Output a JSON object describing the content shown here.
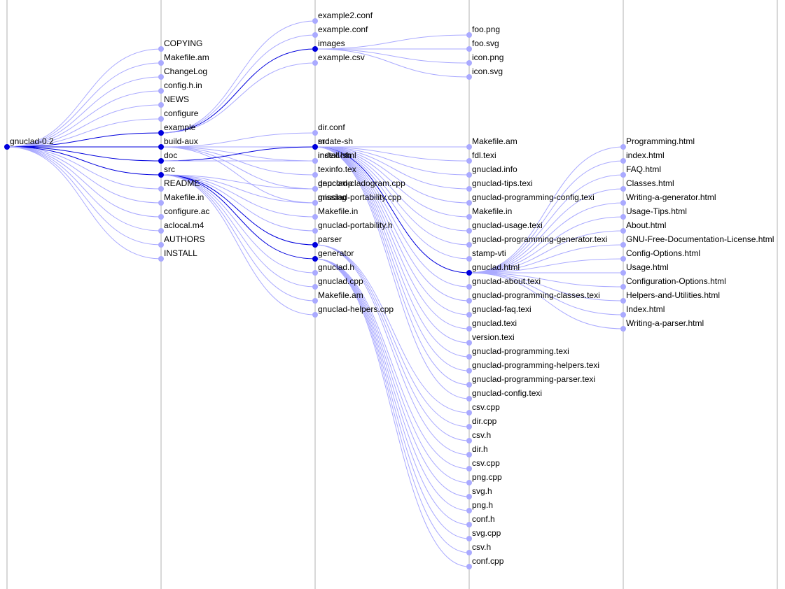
{
  "colors": {
    "expanded": "#0000dd",
    "leaf": "#aaaaff",
    "link_active": "#0000dd",
    "link": "#aaaaff",
    "column_line": "#cccccc"
  },
  "columns": 6,
  "tree": {
    "name": "gnuclad-0.2",
    "children": [
      {
        "name": "COPYING"
      },
      {
        "name": "Makefile.am"
      },
      {
        "name": "ChangeLog"
      },
      {
        "name": "config.h.in"
      },
      {
        "name": "NEWS"
      },
      {
        "name": "configure"
      },
      {
        "name": "example",
        "children": [
          {
            "name": "example2.conf"
          },
          {
            "name": "example.conf"
          },
          {
            "name": "images",
            "children": [
              {
                "name": "foo.png"
              },
              {
                "name": "foo.svg"
              },
              {
                "name": "icon.png"
              },
              {
                "name": "icon.svg"
              }
            ]
          },
          {
            "name": "example.csv"
          }
        ]
      },
      {
        "name": "build-aux",
        "children": [
          {
            "name": "dir.conf"
          },
          {
            "name": "mdate-sh"
          },
          {
            "name": "install-sh"
          },
          {
            "name": "texinfo.tex"
          },
          {
            "name": "depcomp"
          },
          {
            "name": "missing"
          }
        ]
      },
      {
        "name": "doc",
        "children": [
          {
            "name": "src",
            "children": [
              {
                "name": "Makefile.am"
              },
              {
                "name": "fdl.texi"
              },
              {
                "name": "gnuclad.info"
              },
              {
                "name": "gnuclad-tips.texi"
              },
              {
                "name": "gnuclad-programming-config.texi"
              },
              {
                "name": "Makefile.in"
              },
              {
                "name": "gnuclad-usage.texi"
              },
              {
                "name": "gnuclad-programming-generator.texi"
              },
              {
                "name": "stamp-vti"
              },
              {
                "name": "gnuclad.html",
                "children": [
                  {
                    "name": "Programming.html"
                  },
                  {
                    "name": "index.html"
                  },
                  {
                    "name": "FAQ.html"
                  },
                  {
                    "name": "Classes.html"
                  },
                  {
                    "name": "Writing-a-generator.html"
                  },
                  {
                    "name": "Usage-Tips.html"
                  },
                  {
                    "name": "About.html"
                  },
                  {
                    "name": "GNU-Free-Documentation-License.html"
                  },
                  {
                    "name": "Config-Options.html"
                  },
                  {
                    "name": "Usage.html"
                  },
                  {
                    "name": "Configuration-Options.html"
                  },
                  {
                    "name": "Helpers-and-Utilities.html"
                  },
                  {
                    "name": "Index.html"
                  },
                  {
                    "name": "Writing-a-parser.html"
                  }
                ]
              },
              {
                "name": "gnuclad-about.texi"
              },
              {
                "name": "gnuclad-programming-classes.texi"
              },
              {
                "name": "gnuclad-faq.texi"
              },
              {
                "name": "gnuclad.texi"
              },
              {
                "name": "version.texi"
              },
              {
                "name": "gnuclad-programming.texi"
              },
              {
                "name": "gnuclad-programming-helpers.texi"
              },
              {
                "name": "gnuclad-programming-parser.texi"
              },
              {
                "name": "gnuclad-config.texi"
              }
            ]
          },
          {
            "name": "index.html"
          }
        ]
      },
      {
        "name": "src",
        "children": [
          {
            "name": "gnuclad-cladogram.cpp"
          },
          {
            "name": "gnuclad-portability.cpp"
          },
          {
            "name": "Makefile.in"
          },
          {
            "name": "gnuclad-portability.h"
          },
          {
            "name": "parser",
            "children": [
              {
                "name": "csv.cpp"
              },
              {
                "name": "dir.cpp"
              },
              {
                "name": "csv.h"
              },
              {
                "name": "dir.h"
              }
            ]
          },
          {
            "name": "generator",
            "children": [
              {
                "name": "csv.cpp"
              },
              {
                "name": "png.cpp"
              },
              {
                "name": "svg.h"
              },
              {
                "name": "png.h"
              },
              {
                "name": "conf.h"
              },
              {
                "name": "svg.cpp"
              },
              {
                "name": "csv.h"
              },
              {
                "name": "conf.cpp"
              }
            ]
          },
          {
            "name": "gnuclad.h"
          },
          {
            "name": "gnuclad.cpp"
          },
          {
            "name": "Makefile.am"
          },
          {
            "name": "gnuclad-helpers.cpp"
          }
        ]
      },
      {
        "name": "README"
      },
      {
        "name": "Makefile.in"
      },
      {
        "name": "configure.ac"
      },
      {
        "name": "aclocal.m4"
      },
      {
        "name": "AUTHORS"
      },
      {
        "name": "INSTALL"
      }
    ]
  }
}
